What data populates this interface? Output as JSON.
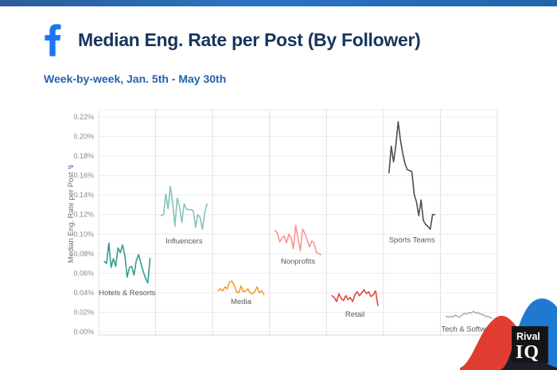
{
  "header": {
    "title": "Median Eng. Rate per Post (By Follower)",
    "subtitle": "Week-by-week, Jan. 5th - May 30th",
    "platform_icon": "facebook-icon",
    "facebook_blue": "#1877f2",
    "title_color": "#17355e",
    "subtitle_color": "#2363ae"
  },
  "chart_data": {
    "type": "line",
    "title": "Median Eng. Rate per Post (By Follower)",
    "subtitle": "Week-by-week, Jan. 5th - May 30th",
    "ylabel": "Median Eng. Rate per Post",
    "ylabel_icon": "boost-lightning-icon",
    "ylabel_icon_glyph": "↯",
    "unit": "%",
    "x_description": "21 weekly values per category, Jan. 5th - May 30th (no x tick labels shown)",
    "ylim": [
      0,
      0.22
    ],
    "ytick_step": 0.02,
    "yticks": [
      "0.00%",
      "0.02%",
      "0.04%",
      "0.06%",
      "0.08%",
      "0.10%",
      "0.12%",
      "0.14%",
      "0.16%",
      "0.18%",
      "0.20%",
      "0.22%"
    ],
    "grid": true,
    "legend_position": "inline-panel-labels",
    "panels": [
      {
        "label": "Hotels & Resorts",
        "color": "#369a92",
        "label_y": 0.04,
        "values": [
          0.072,
          0.07,
          0.091,
          0.066,
          0.075,
          0.067,
          0.086,
          0.081,
          0.089,
          0.078,
          0.056,
          0.066,
          0.067,
          0.058,
          0.073,
          0.079,
          0.07,
          0.062,
          0.055,
          0.05,
          0.075
        ]
      },
      {
        "label": "Influencers",
        "color": "#84c3bd",
        "label_y": 0.093,
        "values": [
          0.119,
          0.12,
          0.141,
          0.126,
          0.149,
          0.133,
          0.108,
          0.137,
          0.128,
          0.112,
          0.131,
          0.126,
          0.125,
          0.125,
          0.124,
          0.107,
          0.12,
          0.117,
          0.105,
          0.122,
          0.131
        ]
      },
      {
        "label": "Media",
        "color": "#f39c2d",
        "label_y": 0.031,
        "values": [
          0.042,
          0.044,
          0.042,
          0.046,
          0.044,
          0.051,
          0.052,
          0.048,
          0.041,
          0.04,
          0.047,
          0.041,
          0.042,
          0.044,
          0.04,
          0.039,
          0.041,
          0.046,
          0.04,
          0.042,
          0.038
        ]
      },
      {
        "label": "Nonprofits",
        "color": "#fb948f",
        "label_y": 0.072,
        "values": [
          0.104,
          0.101,
          0.092,
          0.096,
          0.098,
          0.091,
          0.1,
          0.096,
          0.085,
          0.109,
          0.096,
          0.083,
          0.105,
          0.101,
          0.094,
          0.087,
          0.093,
          0.091,
          0.081,
          0.08,
          0.079
        ]
      },
      {
        "label": "Retail",
        "color": "#e8423d",
        "label_y": 0.018,
        "values": [
          0.037,
          0.035,
          0.031,
          0.039,
          0.034,
          0.032,
          0.037,
          0.033,
          0.035,
          0.031,
          0.038,
          0.041,
          0.037,
          0.04,
          0.043,
          0.039,
          0.041,
          0.036,
          0.038,
          0.042,
          0.027
        ]
      },
      {
        "label": "Sports Teams",
        "color": "#4e4e4e",
        "label_y": 0.094,
        "values": [
          0.163,
          0.19,
          0.174,
          0.191,
          0.215,
          0.196,
          0.183,
          0.172,
          0.166,
          0.165,
          0.164,
          0.141,
          0.133,
          0.119,
          0.135,
          0.114,
          0.11,
          0.108,
          0.105,
          0.12,
          0.12
        ]
      },
      {
        "label": "Tech & Software",
        "color": "#b8aeaa",
        "label_y": 0.003,
        "values": [
          0.016,
          0.015,
          0.016,
          0.015,
          0.017,
          0.016,
          0.015,
          0.017,
          0.019,
          0.018,
          0.02,
          0.019,
          0.021,
          0.019,
          0.02,
          0.018,
          0.018,
          0.016,
          0.016,
          0.015,
          0.014
        ]
      }
    ],
    "axis_colors": {
      "grid": "#ececec",
      "panel_divider": "#e0e0e0",
      "border": "#d7d7d7",
      "tick_text": "#8a8a8a",
      "axis_title": "#6b6b6b",
      "panel_label": "#575757",
      "icon_blue": "#4a7ab5"
    }
  },
  "branding": {
    "name": "Rival IQ",
    "line1": "Rival",
    "line2": "IQ",
    "square_color": "#151515",
    "red_hill_color": "#e03c31",
    "blue_hill_color": "#2079d1",
    "text_color": "#ffffff"
  }
}
